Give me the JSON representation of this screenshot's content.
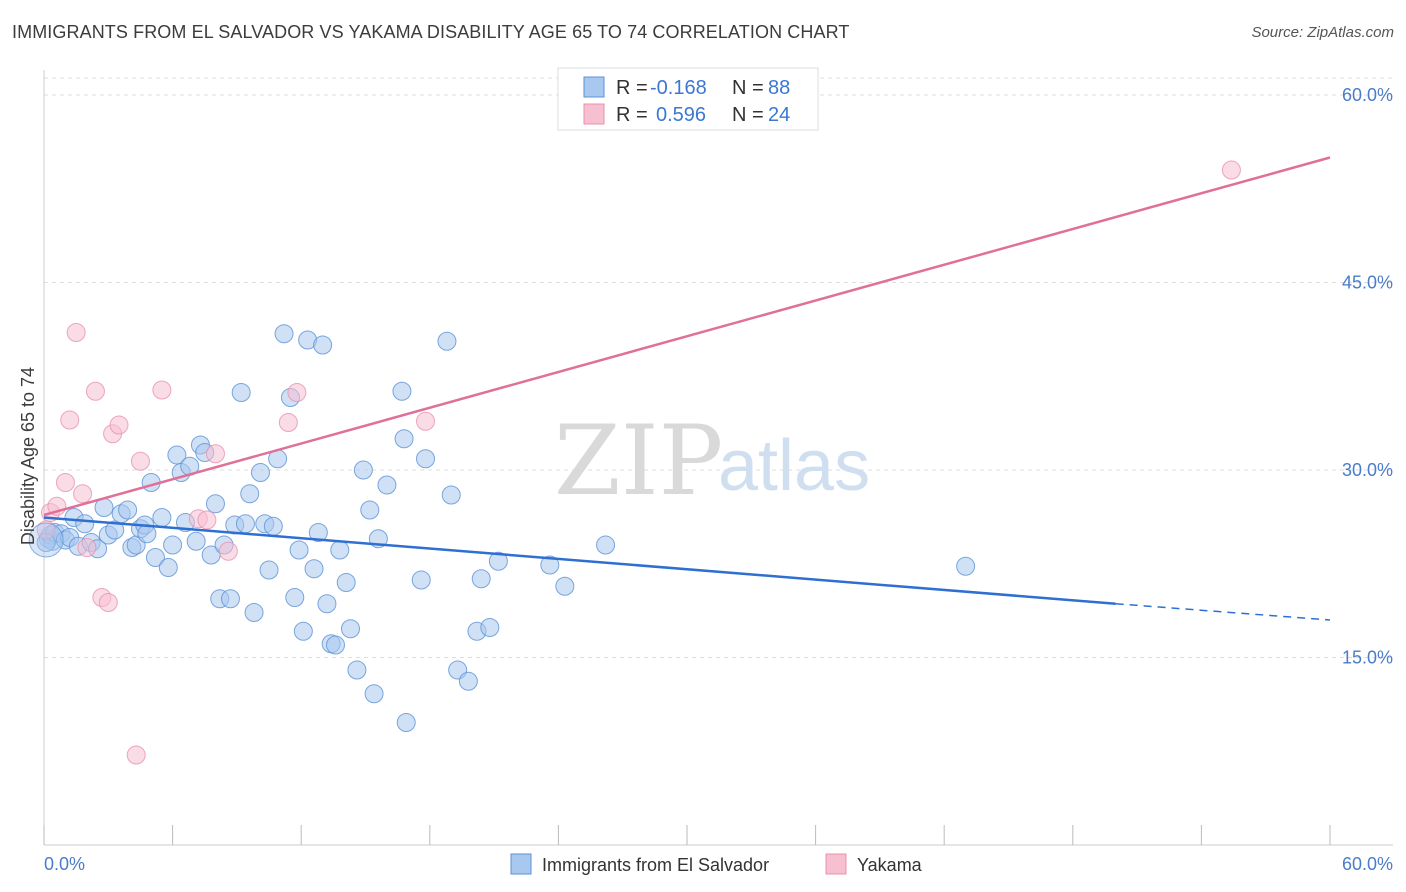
{
  "header": {
    "title": "IMMIGRANTS FROM EL SALVADOR VS YAKAMA DISABILITY AGE 65 TO 74 CORRELATION CHART",
    "source": "Source: ZipAtlas.com"
  },
  "watermark": {
    "zip": "ZIP",
    "atlas": "atlas"
  },
  "colors": {
    "blue_fill": "#a9c8ef",
    "blue_stroke": "#5b92d6",
    "blue_line": "#2e6fd1",
    "pink_fill": "#f6c0d1",
    "pink_stroke": "#e891ae",
    "pink_line": "#e0709a",
    "axis_text": "#4a7cc9",
    "grid": "#dddddd"
  },
  "legend": {
    "rows": [
      {
        "r_label": "R =",
        "r_value": "-0.168",
        "n_label": "N =",
        "n_value": "88"
      },
      {
        "r_label": "R =",
        "r_value": "0.596",
        "n_label": "N =",
        "n_value": "24"
      }
    ]
  },
  "bottom_legend": [
    "Immigrants from El Salvador",
    "Yakama"
  ],
  "chart_data": {
    "type": "scatter",
    "title": "IMMIGRANTS FROM EL SALVADOR VS YAKAMA DISABILITY AGE 65 TO 74 CORRELATION CHART",
    "xlabel": "",
    "ylabel": "Disability Age 65 to 74",
    "xlim": [
      0,
      60
    ],
    "ylim": [
      0,
      62
    ],
    "x_tick_labels": [
      "0.0%",
      "60.0%"
    ],
    "y_ticks": [
      15,
      30,
      45,
      60
    ],
    "y_tick_labels": [
      "15.0%",
      "30.0%",
      "45.0%",
      "60.0%"
    ],
    "grid": true,
    "legend_position": "top-center",
    "series": [
      {
        "name": "Immigrants from El Salvador",
        "trend": {
          "x0": 0,
          "y0": 26.2,
          "x1": 50,
          "y1": 19.3,
          "dash_to": 60,
          "dash_y": 18.0
        },
        "points": [
          [
            0.2,
            24.5
          ],
          [
            0.3,
            24.8
          ],
          [
            0.4,
            24.3
          ],
          [
            0.5,
            25.0
          ],
          [
            0.8,
            24.9
          ],
          [
            1.0,
            24.4
          ],
          [
            1.2,
            24.6
          ],
          [
            1.4,
            26.2
          ],
          [
            1.6,
            23.9
          ],
          [
            1.9,
            25.7
          ],
          [
            2.2,
            24.2
          ],
          [
            2.5,
            23.7
          ],
          [
            2.8,
            27.0
          ],
          [
            3.0,
            24.8
          ],
          [
            3.3,
            25.2
          ],
          [
            3.6,
            26.5
          ],
          [
            3.9,
            26.8
          ],
          [
            4.1,
            23.8
          ],
          [
            4.3,
            24.0
          ],
          [
            4.5,
            25.3
          ],
          [
            4.7,
            25.6
          ],
          [
            4.8,
            24.9
          ],
          [
            5.0,
            29.0
          ],
          [
            5.2,
            23.0
          ],
          [
            5.5,
            26.2
          ],
          [
            5.8,
            22.2
          ],
          [
            6.0,
            24.0
          ],
          [
            6.2,
            31.2
          ],
          [
            6.4,
            29.8
          ],
          [
            6.6,
            25.8
          ],
          [
            6.8,
            30.3
          ],
          [
            7.1,
            24.3
          ],
          [
            7.3,
            32.0
          ],
          [
            7.5,
            31.4
          ],
          [
            7.8,
            23.2
          ],
          [
            8.0,
            27.3
          ],
          [
            8.2,
            19.7
          ],
          [
            8.4,
            24.0
          ],
          [
            8.7,
            19.7
          ],
          [
            8.9,
            25.6
          ],
          [
            9.2,
            36.2
          ],
          [
            9.4,
            25.7
          ],
          [
            9.6,
            28.1
          ],
          [
            9.8,
            18.6
          ],
          [
            10.1,
            29.8
          ],
          [
            10.3,
            25.7
          ],
          [
            10.5,
            22.0
          ],
          [
            10.7,
            25.5
          ],
          [
            10.9,
            30.9
          ],
          [
            11.2,
            40.9
          ],
          [
            11.5,
            35.8
          ],
          [
            11.7,
            19.8
          ],
          [
            11.9,
            23.6
          ],
          [
            12.1,
            17.1
          ],
          [
            12.3,
            40.4
          ],
          [
            12.6,
            22.1
          ],
          [
            12.8,
            25.0
          ],
          [
            13.0,
            40.0
          ],
          [
            13.2,
            19.3
          ],
          [
            13.4,
            16.1
          ],
          [
            13.6,
            16.0
          ],
          [
            13.8,
            23.6
          ],
          [
            14.1,
            21.0
          ],
          [
            14.3,
            17.3
          ],
          [
            14.6,
            14.0
          ],
          [
            14.9,
            30.0
          ],
          [
            15.2,
            26.8
          ],
          [
            15.4,
            12.1
          ],
          [
            15.6,
            24.5
          ],
          [
            16.0,
            28.8
          ],
          [
            16.7,
            36.3
          ],
          [
            16.8,
            32.5
          ],
          [
            16.9,
            9.8
          ],
          [
            17.6,
            21.2
          ],
          [
            17.8,
            30.9
          ],
          [
            18.8,
            40.3
          ],
          [
            19.0,
            28.0
          ],
          [
            19.3,
            14.0
          ],
          [
            19.8,
            13.1
          ],
          [
            20.2,
            17.1
          ],
          [
            20.4,
            21.3
          ],
          [
            20.8,
            17.4
          ],
          [
            21.2,
            22.7
          ],
          [
            23.6,
            22.4
          ],
          [
            24.3,
            20.7
          ],
          [
            26.2,
            24.0
          ],
          [
            43.0,
            22.3
          ],
          [
            0.1,
            24.2
          ]
        ]
      },
      {
        "name": "Yakama",
        "trend": {
          "x0": 0,
          "y0": 26.4,
          "x1": 60,
          "y1": 55.0
        },
        "points": [
          [
            0.1,
            25.2
          ],
          [
            0.3,
            26.6
          ],
          [
            0.6,
            27.1
          ],
          [
            1.0,
            29.0
          ],
          [
            1.2,
            34.0
          ],
          [
            1.5,
            41.0
          ],
          [
            1.8,
            28.1
          ],
          [
            2.0,
            23.8
          ],
          [
            2.4,
            36.3
          ],
          [
            2.7,
            19.8
          ],
          [
            3.0,
            19.4
          ],
          [
            3.2,
            32.9
          ],
          [
            3.5,
            33.6
          ],
          [
            4.5,
            30.7
          ],
          [
            5.5,
            36.4
          ],
          [
            7.2,
            26.1
          ],
          [
            7.6,
            26.0
          ],
          [
            8.0,
            31.3
          ],
          [
            8.6,
            23.5
          ],
          [
            11.4,
            33.8
          ],
          [
            11.8,
            36.2
          ],
          [
            17.8,
            33.9
          ],
          [
            4.3,
            7.2
          ],
          [
            55.4,
            54.0
          ]
        ]
      }
    ]
  }
}
